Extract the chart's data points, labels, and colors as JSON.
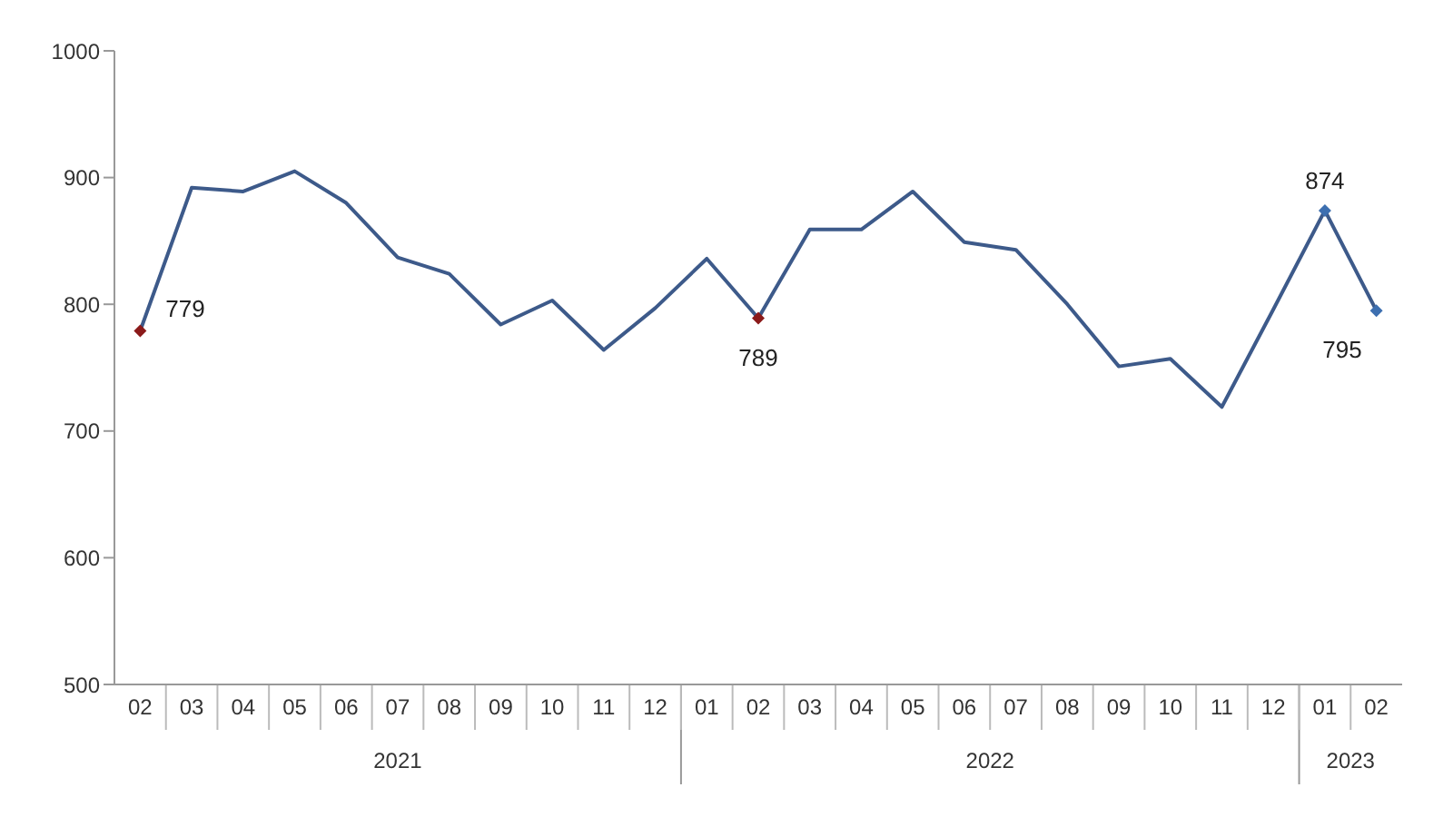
{
  "chart_data": {
    "type": "line",
    "categories": [
      "02",
      "03",
      "04",
      "05",
      "06",
      "07",
      "08",
      "09",
      "10",
      "11",
      "12",
      "01",
      "02",
      "03",
      "04",
      "05",
      "06",
      "07",
      "08",
      "09",
      "10",
      "11",
      "12",
      "01",
      "02"
    ],
    "series": [
      {
        "color": "#3d5a8a",
        "values": [
          779,
          892,
          889,
          905,
          880,
          837,
          824,
          784,
          803,
          764,
          797,
          836,
          789,
          859,
          859,
          889,
          849,
          843,
          800,
          751,
          757,
          719,
          796,
          874,
          795
        ],
        "value_labels": [
          "779",
          null,
          null,
          null,
          null,
          null,
          null,
          null,
          null,
          null,
          null,
          null,
          "789",
          null,
          null,
          null,
          null,
          null,
          null,
          null,
          null,
          null,
          null,
          "874",
          "795"
        ],
        "colors": [
          "#8b1a1a",
          null,
          null,
          null,
          null,
          null,
          null,
          null,
          null,
          null,
          null,
          null,
          "#8b1a1a",
          null,
          null,
          null,
          null,
          null,
          null,
          null,
          null,
          null,
          null,
          "#3d6fb0",
          "#3d6fb0"
        ]
      }
    ],
    "annotations": [
      "2021",
      "2022",
      "2023"
    ],
    "ylim": [
      500,
      1000
    ],
    "yticks": [
      500,
      600,
      700,
      800,
      900,
      1000
    ],
    "line_style": "solid"
  }
}
